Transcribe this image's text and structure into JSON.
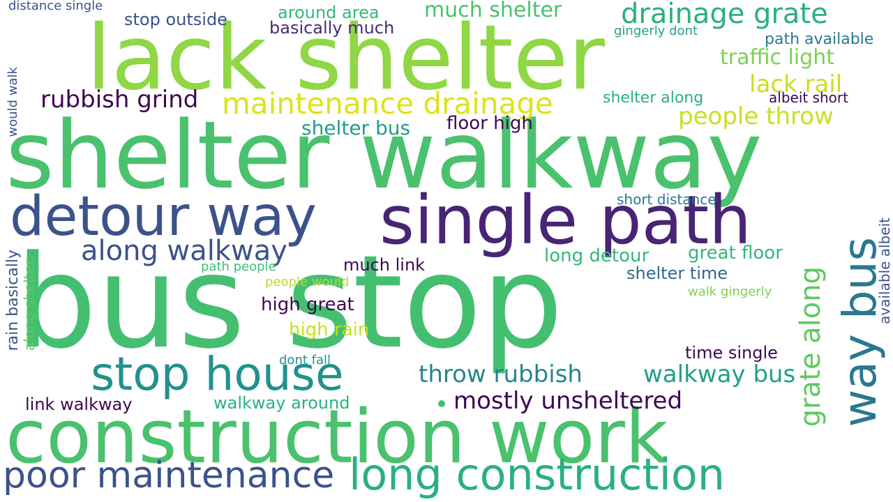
{
  "words": [
    {
      "text": "bus stop",
      "color": "#44bf70"
    },
    {
      "text": "shelter walkway",
      "color": "#4ac16d"
    },
    {
      "text": "lack shelter",
      "color": "#8fd744"
    },
    {
      "text": "construction work",
      "color": "#4ac16d"
    },
    {
      "text": "single path",
      "color": "#482475"
    },
    {
      "text": "detour way",
      "color": "#3b528b"
    },
    {
      "text": "long construction",
      "color": "#2ab07f"
    },
    {
      "text": "stop house",
      "color": "#21918c"
    },
    {
      "text": "poor maintenance",
      "color": "#3b528b"
    },
    {
      "text": "way bus",
      "color": "#2a788e"
    },
    {
      "text": "drainage grate",
      "color": "#2ab07f"
    },
    {
      "text": "maintenance drainage",
      "color": "#dde318"
    },
    {
      "text": "along walkway",
      "color": "#3b528b"
    },
    {
      "text": "grate along",
      "color": "#5ec962"
    },
    {
      "text": "throw rubbish",
      "color": "#25858e"
    },
    {
      "text": "walkway bus",
      "color": "#1fa088"
    },
    {
      "text": "mostly unsheltered",
      "color": "#3e0751"
    },
    {
      "text": "rubbish grind",
      "color": "#3e0751"
    },
    {
      "text": "much shelter",
      "color": "#4ac16d"
    },
    {
      "text": "people throw",
      "color": "#c8e020"
    },
    {
      "text": "traffic light",
      "color": "#7ad151"
    },
    {
      "text": "lack rail",
      "color": "#c8e020"
    },
    {
      "text": "shelter bus",
      "color": "#1f9e89"
    },
    {
      "text": "floor high",
      "color": "#3e0751"
    },
    {
      "text": "great floor",
      "color": "#34b679"
    },
    {
      "text": "long detour",
      "color": "#35b779"
    },
    {
      "text": "much link",
      "color": "#3e0751"
    },
    {
      "text": "shelter time",
      "color": "#31688e"
    },
    {
      "text": "high great",
      "color": "#3e0751"
    },
    {
      "text": "high rain",
      "color": "#c8e020"
    },
    {
      "text": "time single",
      "color": "#3e0751"
    },
    {
      "text": "walkway around",
      "color": "#2ab07f"
    },
    {
      "text": "link walkway",
      "color": "#3e0751"
    },
    {
      "text": "stop outside",
      "color": "#3b528b"
    },
    {
      "text": "basically much",
      "color": "#472c7a"
    },
    {
      "text": "around area",
      "color": "#35b779"
    },
    {
      "text": "shelter along",
      "color": "#2ab07f"
    },
    {
      "text": "albeit short",
      "color": "#3e0751"
    },
    {
      "text": "short distance",
      "color": "#2a788e"
    },
    {
      "text": "path available",
      "color": "#2a788e"
    },
    {
      "text": "gingerly dont",
      "color": "#2a9d8f"
    },
    {
      "text": "path people",
      "color": "#3ac174"
    },
    {
      "text": "people would",
      "color": "#b5de2b"
    },
    {
      "text": "walk gingerly",
      "color": "#7ad151"
    },
    {
      "text": "dont fall",
      "color": "#21918c"
    },
    {
      "text": "distance single",
      "color": "#3b528b"
    },
    {
      "text": "rain basically",
      "color": "#3b528b"
    },
    {
      "text": "along shelter",
      "color": "#5ec962"
    },
    {
      "text": "available albeit",
      "color": "#3b528b"
    },
    {
      "text": "would walk",
      "color": "#3b528b"
    }
  ]
}
